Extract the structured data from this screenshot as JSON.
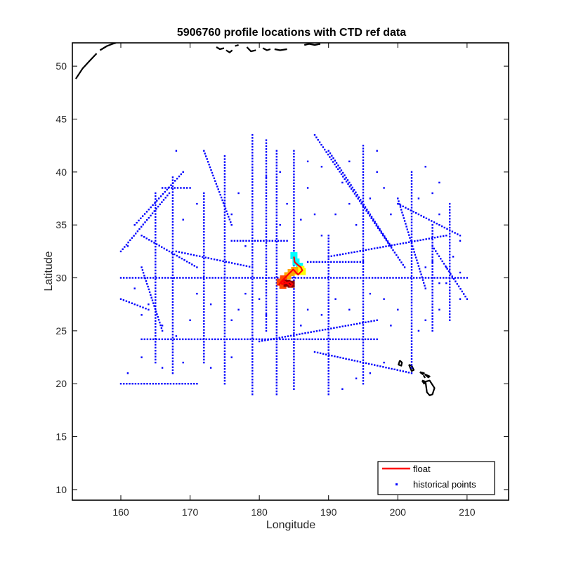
{
  "chart_data": {
    "type": "scatter",
    "title": "5906760 profile locations with CTD ref data",
    "xlabel": "Longitude",
    "ylabel": "Latitude",
    "xlim": [
      153,
      216
    ],
    "ylim": [
      9,
      52.2
    ],
    "xticks": [
      160,
      170,
      180,
      190,
      200,
      210
    ],
    "yticks": [
      10,
      15,
      20,
      25,
      30,
      35,
      40,
      45,
      50
    ],
    "grid": false,
    "legend_position": "bottom-right",
    "series": [
      {
        "name": "float",
        "type": "line",
        "color": "#ff0000",
        "x": [
          185.0,
          185.1,
          185.6,
          186.0,
          186.2,
          185.9,
          185.6,
          185.3,
          184.9,
          184.6,
          184.3,
          184.0,
          183.7,
          183.4,
          183.1,
          183.3,
          183.8,
          184.4,
          184.8,
          184.5,
          184.2,
          183.6,
          183.0,
          182.8
        ],
        "y": [
          32.0,
          31.5,
          31.2,
          31.0,
          30.7,
          30.5,
          30.3,
          30.5,
          30.8,
          30.6,
          30.4,
          30.2,
          30.0,
          29.8,
          29.6,
          29.4,
          29.5,
          29.6,
          29.4,
          29.2,
          29.4,
          29.7,
          29.5,
          29.3
        ]
      },
      {
        "name": "historical points",
        "type": "scatter",
        "color": "#0000ff",
        "tracks": [
          {
            "x": [
              160,
              210
            ],
            "y": [
              30.0,
              30.0
            ]
          },
          {
            "x": [
              163,
              197
            ],
            "y": [
              24.2,
              24.2
            ]
          },
          {
            "x": [
              179,
              179
            ],
            "y": [
              19.0,
              43.5
            ]
          },
          {
            "x": [
              202,
              202
            ],
            "y": [
              21.5,
              40.0
            ]
          },
          {
            "x": [
              167.5,
              167.5
            ],
            "y": [
              21.0,
              39.5
            ]
          },
          {
            "x": [
              165,
              165
            ],
            "y": [
              22.0,
              38.0
            ]
          },
          {
            "x": [
              185,
              185
            ],
            "y": [
              19.5,
              42.0
            ]
          },
          {
            "x": [
              195,
              195
            ],
            "y": [
              20.0,
              42.5
            ]
          },
          {
            "x": [
              175,
              175
            ],
            "y": [
              20.0,
              41.5
            ]
          },
          {
            "x": [
              182.5,
              182.5
            ],
            "y": [
              19.0,
              42.0
            ]
          },
          {
            "x": [
              181,
              181
            ],
            "y": [
              25.0,
              43.0
            ]
          },
          {
            "x": [
              172,
              172
            ],
            "y": [
              22.0,
              38.0
            ]
          },
          {
            "x": [
              188,
              201
            ],
            "y": [
              43.5,
              31.0
            ]
          },
          {
            "x": [
              190,
              199
            ],
            "y": [
              42.0,
              33.0
            ]
          },
          {
            "x": [
              200,
              209
            ],
            "y": [
              37.0,
              34.0
            ]
          },
          {
            "x": [
              205,
              210
            ],
            "y": [
              33.0,
              28.0
            ]
          },
          {
            "x": [
              190,
              207
            ],
            "y": [
              32.0,
              34.0
            ]
          },
          {
            "x": [
              180,
              197
            ],
            "y": [
              24.0,
              26.0
            ]
          },
          {
            "x": [
              188,
              202
            ],
            "y": [
              23.0,
              21.0
            ]
          },
          {
            "x": [
              162,
              169
            ],
            "y": [
              35.0,
              40.0
            ]
          },
          {
            "x": [
              160,
              167
            ],
            "y": [
              32.5,
              38.0
            ]
          },
          {
            "x": [
              166,
              170
            ],
            "y": [
              38.5,
              38.5
            ]
          },
          {
            "x": [
              160,
              171
            ],
            "y": [
              20.0,
              20.0
            ]
          },
          {
            "x": [
              163,
              171
            ],
            "y": [
              34.0,
              31.0
            ]
          },
          {
            "x": [
              187,
              195
            ],
            "y": [
              31.5,
              31.5
            ]
          },
          {
            "x": [
              176,
              184
            ],
            "y": [
              33.5,
              33.5
            ]
          },
          {
            "x": [
              168,
              179
            ],
            "y": [
              32.5,
              31.0
            ]
          },
          {
            "x": [
              207.5,
              207.5
            ],
            "y": [
              26.0,
              37.0
            ]
          },
          {
            "x": [
              205,
              205
            ],
            "y": [
              25.0,
              35.0
            ]
          },
          {
            "x": [
              200,
              204
            ],
            "y": [
              37.5,
              29.0
            ]
          },
          {
            "x": [
              190,
              190
            ],
            "y": [
              19.0,
              34.0
            ]
          },
          {
            "x": [
              172,
              176
            ],
            "y": [
              42.0,
              35.0
            ]
          },
          {
            "x": [
              163,
              166
            ],
            "y": [
              31.0,
              25.0
            ]
          },
          {
            "x": [
              160,
              164
            ],
            "y": [
              28.0,
              27.0
            ]
          }
        ],
        "points": [
          [
            162,
            29.0
          ],
          [
            163,
            26.5
          ],
          [
            164,
            27.5
          ],
          [
            161,
            33.0
          ],
          [
            169,
            35.5
          ],
          [
            171,
            37.0
          ],
          [
            168,
            42.0
          ],
          [
            177,
            38.0
          ],
          [
            176,
            36.0
          ],
          [
            178,
            33.0
          ],
          [
            183,
            35.0
          ],
          [
            184,
            37.0
          ],
          [
            186,
            35.5
          ],
          [
            187,
            38.5
          ],
          [
            188,
            36.0
          ],
          [
            189,
            34.0
          ],
          [
            191,
            36.0
          ],
          [
            192,
            39.0
          ],
          [
            193,
            37.0
          ],
          [
            194,
            35.0
          ],
          [
            196,
            37.5
          ],
          [
            197,
            40.0
          ],
          [
            198,
            38.5
          ],
          [
            199,
            36.0
          ],
          [
            203,
            37.5
          ],
          [
            204,
            40.5
          ],
          [
            206,
            39.0
          ],
          [
            208,
            32.0
          ],
          [
            209,
            33.5
          ],
          [
            209,
            28.0
          ],
          [
            206,
            27.0
          ],
          [
            204,
            26.0
          ],
          [
            203,
            25.0
          ],
          [
            199,
            25.5
          ],
          [
            198,
            22.0
          ],
          [
            196,
            21.0
          ],
          [
            194,
            20.5
          ],
          [
            192,
            19.5
          ],
          [
            187,
            27.0
          ],
          [
            186,
            25.5
          ],
          [
            189,
            26.5
          ],
          [
            191,
            28.0
          ],
          [
            193,
            27.0
          ],
          [
            196,
            28.5
          ],
          [
            198,
            28.0
          ],
          [
            200,
            27.0
          ],
          [
            177,
            27.0
          ],
          [
            176,
            26.0
          ],
          [
            173,
            27.5
          ],
          [
            171,
            28.5
          ],
          [
            170,
            26.0
          ],
          [
            168,
            24.5
          ],
          [
            166,
            25.5
          ],
          [
            166,
            21.5
          ],
          [
            169,
            22.0
          ],
          [
            173,
            21.5
          ],
          [
            176,
            22.5
          ],
          [
            178,
            28.5
          ],
          [
            180,
            28.0
          ],
          [
            181,
            26.5
          ],
          [
            163,
            22.5
          ],
          [
            161,
            21.0
          ],
          [
            197,
            42.0
          ],
          [
            193,
            41.0
          ],
          [
            189,
            40.5
          ],
          [
            187,
            41.0
          ],
          [
            183,
            40.0
          ],
          [
            181,
            39.5
          ],
          [
            206,
            36.0
          ],
          [
            205,
            38.0
          ],
          [
            209,
            30.5
          ],
          [
            206,
            29.5
          ],
          [
            207,
            29.5
          ],
          [
            205,
            31.5
          ],
          [
            204,
            31.0
          ],
          [
            207,
            31.0
          ]
        ]
      }
    ],
    "coastlines": [
      {
        "lon": [
          153.5,
          154.5,
          155.5,
          156.5
        ],
        "lat": [
          48.8,
          49.8,
          50.5,
          51.2
        ]
      },
      {
        "lon": [
          157.0,
          158.0,
          158.8,
          159.3
        ],
        "lat": [
          51.5,
          51.9,
          52.1,
          52.2
        ]
      },
      {
        "lon": [
          173.8,
          174.3,
          174.9
        ],
        "lat": [
          51.8,
          51.6,
          51.7
        ]
      },
      {
        "lon": [
          175.2,
          175.7,
          176.1
        ],
        "lat": [
          51.5,
          51.3,
          51.5
        ]
      },
      {
        "lon": [
          176.5,
          177.0
        ],
        "lat": [
          51.9,
          52.0
        ]
      },
      {
        "lon": [
          178.2,
          178.8,
          179.5
        ],
        "lat": [
          51.8,
          51.4,
          51.5
        ]
      },
      {
        "lon": [
          180.5,
          181.1,
          181.6
        ],
        "lat": [
          51.7,
          51.5,
          51.6
        ]
      },
      {
        "lon": [
          182.2,
          183.0,
          184.0
        ],
        "lat": [
          51.6,
          51.5,
          51.6
        ]
      },
      {
        "lon": [
          186.5,
          187.2,
          188.0,
          188.8
        ],
        "lat": [
          52.0,
          52.1,
          52.0,
          52.1
        ]
      },
      {
        "lon": [
          200.3,
          200.6,
          200.5,
          200.1,
          200.3
        ],
        "lat": [
          22.2,
          22.0,
          21.7,
          21.8,
          22.2
        ]
      },
      {
        "lon": [
          201.6,
          202.0,
          202.3,
          202.0,
          201.8,
          201.6
        ],
        "lat": [
          21.8,
          21.7,
          21.3,
          21.2,
          21.5,
          21.8
        ]
      },
      {
        "lon": [
          203.2,
          203.8,
          203.6,
          203.2
        ],
        "lat": [
          21.1,
          21.0,
          20.9,
          21.1
        ]
      },
      {
        "lon": [
          203.7,
          203.9,
          203.7
        ],
        "lat": [
          20.8,
          20.6,
          20.8
        ]
      },
      {
        "lon": [
          203.5,
          204.0,
          203.8,
          203.5
        ],
        "lat": [
          20.3,
          20.2,
          20.0,
          20.3
        ]
      },
      {
        "lon": [
          203.9,
          204.6,
          204.4,
          203.9
        ],
        "lat": [
          20.9,
          20.7,
          20.6,
          20.9
        ]
      },
      {
        "lon": [
          204.0,
          204.6,
          205.3,
          205.0,
          204.6,
          204.2,
          204.0
        ],
        "lat": [
          20.2,
          20.3,
          19.6,
          19.0,
          18.9,
          19.2,
          20.2
        ]
      }
    ],
    "sections": {
      "colors": [
        "#00ffff",
        "#ffff00",
        "#ffa500",
        "#ff4500",
        "#8b0000"
      ],
      "x": [
        185.0,
        185.3,
        185.8,
        186.0,
        186.2,
        185.6,
        185.1,
        184.6,
        184.1,
        183.5,
        183.0,
        183.4,
        184.0,
        184.6
      ],
      "y": [
        32.1,
        31.5,
        31.1,
        30.8,
        30.6,
        30.6,
        30.7,
        30.5,
        30.2,
        29.9,
        29.6,
        29.3,
        29.5,
        29.4
      ]
    },
    "legend": [
      "float",
      "historical points"
    ]
  }
}
